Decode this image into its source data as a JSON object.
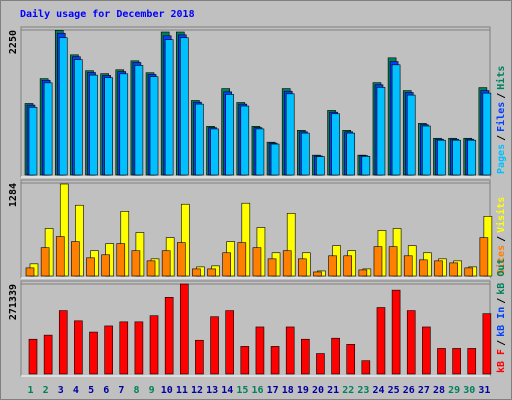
{
  "chart_data": [
    {
      "type": "bar",
      "title": "Daily usage for December 2018",
      "ylim": [
        0,
        2250
      ],
      "yticks": [
        2250
      ],
      "separator": "/",
      "series": [
        {
          "name": "Hits",
          "color": "#00805c",
          "values": [
            1110,
            1495,
            2245,
            1865,
            1618,
            1572,
            1633,
            1772,
            1587,
            2219,
            2219,
            1156,
            755,
            1341,
            1125,
            755,
            509,
            1341,
            693,
            308,
            1002,
            693,
            308,
            1433,
            1818,
            1310,
            801,
            570,
            570,
            570,
            1356
          ]
        },
        {
          "name": "Files",
          "color": "#0040ff",
          "values": [
            1085,
            1470,
            2200,
            1835,
            1590,
            1545,
            1605,
            1745,
            1560,
            2160,
            2175,
            1130,
            735,
            1290,
            1100,
            735,
            495,
            1300,
            670,
            295,
            975,
            670,
            300,
            1400,
            1760,
            1280,
            780,
            555,
            555,
            555,
            1310
          ]
        },
        {
          "name": "Pages",
          "color": "#00c0ff",
          "values": [
            1050,
            1430,
            2130,
            1790,
            1550,
            1510,
            1570,
            1700,
            1525,
            2100,
            2130,
            1100,
            715,
            1250,
            1070,
            715,
            480,
            1260,
            650,
            285,
            950,
            650,
            290,
            1360,
            1710,
            1240,
            760,
            540,
            540,
            540,
            1270
          ]
        }
      ]
    },
    {
      "type": "bar",
      "ylim": [
        0,
        1284
      ],
      "yticks": [
        1284
      ],
      "separator": "/",
      "series": [
        {
          "name": "Visits",
          "color": "#ffff00",
          "values": [
            168,
            656,
            1270,
            977,
            349,
            447,
            893,
            600,
            237,
            530,
            991,
            126,
            140,
            475,
            1005,
            670,
            321,
            865,
            321,
            70,
            419,
            349,
            98,
            628,
            656,
            419,
            321,
            237,
            209,
            126,
            824
          ]
        },
        {
          "name": "Sites",
          "color": "#ff8000",
          "values": [
            112,
            391,
            544,
            475,
            251,
            293,
            447,
            349,
            209,
            349,
            461,
            98,
            98,
            321,
            461,
            391,
            237,
            349,
            237,
            56,
            279,
            279,
            84,
            405,
            405,
            279,
            223,
            209,
            181,
            112,
            530
          ]
        }
      ]
    },
    {
      "type": "bar",
      "ylim": [
        0,
        271339
      ],
      "yticks": [
        271339
      ],
      "separator": "/",
      "series": [
        {
          "name": "kB F",
          "color": "#ff0000",
          "values": [
            104822,
            117154,
            191146,
            160316,
            126403,
            144901,
            157233,
            157233,
            175731,
            231225,
            271339,
            101739,
            172648,
            191146,
            83241,
            141818,
            83241,
            141818,
            104822,
            61660,
            107905,
            89407,
            40079,
            200395,
            252806,
            191146,
            141818,
            77075,
            77075,
            77075,
            181897
          ]
        }
      ],
      "extra_legend": [
        {
          "name": "kB In",
          "color": "#0040ff"
        },
        {
          "name": "kB Out",
          "color": "#00805c"
        }
      ],
      "categories": [
        "1",
        "2",
        "3",
        "4",
        "5",
        "6",
        "7",
        "8",
        "9",
        "10",
        "11",
        "12",
        "13",
        "14",
        "15",
        "16",
        "17",
        "18",
        "19",
        "20",
        "21",
        "22",
        "23",
        "24",
        "25",
        "26",
        "27",
        "28",
        "29",
        "30",
        "31"
      ],
      "label_colors": [
        "#00805c",
        "#00805c",
        "#0000a0",
        "#0000a0",
        "#0000a0",
        "#0000a0",
        "#0000a0",
        "#00805c",
        "#00805c",
        "#0000a0",
        "#0000a0",
        "#0000a0",
        "#0000a0",
        "#0000a0",
        "#00805c",
        "#00805c",
        "#0000a0",
        "#0000a0",
        "#0000a0",
        "#0000a0",
        "#0000a0",
        "#00805c",
        "#00805c",
        "#0000a0",
        "#0000a0",
        "#0000a0",
        "#0000a0",
        "#0000a0",
        "#00805c",
        "#00805c",
        "#0000a0"
      ]
    }
  ]
}
